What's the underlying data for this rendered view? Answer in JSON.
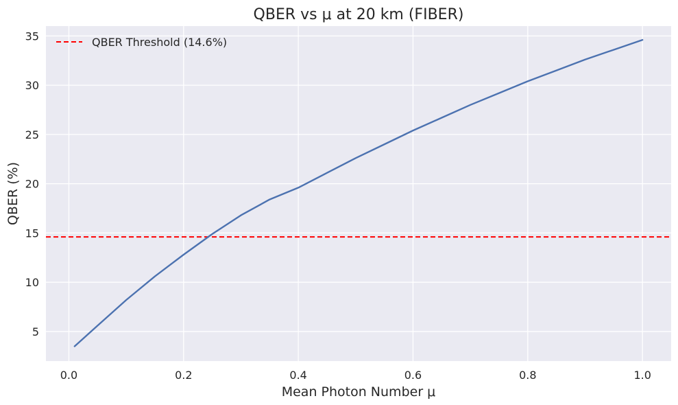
{
  "chart_data": {
    "type": "line",
    "title": "QBER vs μ at 20 km (FIBER)",
    "xlabel": "Mean Photon Number μ",
    "ylabel": "QBER (%)",
    "xlim": [
      -0.04,
      1.05
    ],
    "ylim": [
      2.0,
      36.0
    ],
    "xticks": [
      0.0,
      0.2,
      0.4,
      0.6,
      0.8,
      1.0
    ],
    "xtick_labels": [
      "0.0",
      "0.2",
      "0.4",
      "0.6",
      "0.8",
      "1.0"
    ],
    "yticks": [
      5,
      10,
      15,
      20,
      25,
      30,
      35
    ],
    "ytick_labels": [
      "5",
      "10",
      "15",
      "20",
      "25",
      "30",
      "35"
    ],
    "grid": true,
    "legend_position": "top-left",
    "series": [
      {
        "name": "",
        "color": "#4c72b0",
        "style": "solid",
        "x": [
          0.01,
          0.05,
          0.1,
          0.15,
          0.2,
          0.25,
          0.3,
          0.35,
          0.4,
          0.45,
          0.5,
          0.55,
          0.6,
          0.65,
          0.7,
          0.75,
          0.8,
          0.85,
          0.9,
          0.95,
          1.0
        ],
        "y": [
          3.5,
          5.6,
          8.2,
          10.6,
          12.8,
          14.9,
          16.8,
          18.4,
          19.6,
          21.1,
          22.6,
          24.0,
          25.4,
          26.7,
          28.0,
          29.2,
          30.4,
          31.5,
          32.6,
          33.6,
          34.6
        ]
      }
    ],
    "reference_lines": [
      {
        "name": "QBER Threshold (14.6%)",
        "orientation": "horizontal",
        "y": 14.6,
        "color": "#ff0000",
        "style": "dashed"
      }
    ]
  },
  "colors": {
    "plot_background": "#eaeaf2",
    "grid": "#ffffff",
    "page_background": "#ffffff"
  }
}
